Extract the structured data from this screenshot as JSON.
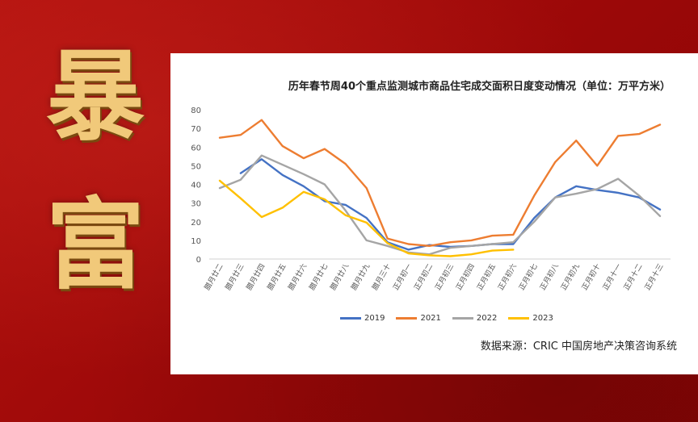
{
  "decor": {
    "char_top": "暴",
    "char_bottom": "富"
  },
  "source_note": "数据来源：CRIC 中国房地产决策咨询系统",
  "chart_data": {
    "type": "line",
    "title": "历年春节周40个重点监测城市商品住宅成交面积日度变动情况（单位：万平方米）",
    "xlabel": "",
    "ylabel": "",
    "ylim": [
      0,
      80
    ],
    "yticks": [
      0,
      10,
      20,
      30,
      40,
      50,
      60,
      70,
      80
    ],
    "grid": false,
    "legend_position": "bottom",
    "categories": [
      "腊月廿二",
      "腊月廿三",
      "腊月廿四",
      "腊月廿五",
      "腊月廿六",
      "腊月廿七",
      "腊月廿八",
      "腊月廿九",
      "腊月三十",
      "正月初一",
      "正月初二",
      "正月初三",
      "正月初四",
      "正月初五",
      "正月初六",
      "正月初七",
      "正月初八",
      "正月初九",
      "正月初十",
      "正月十一",
      "正月十二",
      "正月十三"
    ],
    "series": [
      {
        "name": "2019",
        "color": "#4472c4",
        "values": [
          null,
          46,
          53.5,
          45,
          39,
          31,
          29,
          22,
          9,
          5,
          7.5,
          6.5,
          7,
          8,
          8,
          22,
          33,
          39,
          37,
          35.5,
          33,
          26.5
        ]
      },
      {
        "name": "2021",
        "color": "#ed7d31",
        "values": [
          65,
          66.5,
          74.5,
          60.5,
          54,
          59,
          51,
          38,
          11,
          8,
          7,
          9,
          10,
          12.5,
          13,
          34,
          52,
          63.5,
          50,
          66,
          67,
          72
        ]
      },
      {
        "name": "2022",
        "color": "#a5a5a5",
        "values": [
          38,
          42.5,
          55.5,
          50.5,
          45.5,
          40,
          26,
          10,
          7,
          3.5,
          2.5,
          6,
          7,
          8,
          9,
          20,
          33,
          35,
          37.5,
          43,
          34,
          23
        ]
      },
      {
        "name": "2023",
        "color": "#ffc000",
        "values": [
          42,
          32.5,
          22.5,
          27.5,
          36,
          32,
          23.5,
          19.5,
          8.5,
          3,
          2,
          1.5,
          2.5,
          4.5,
          5,
          null,
          null,
          null,
          null,
          null,
          null,
          null
        ]
      }
    ]
  }
}
